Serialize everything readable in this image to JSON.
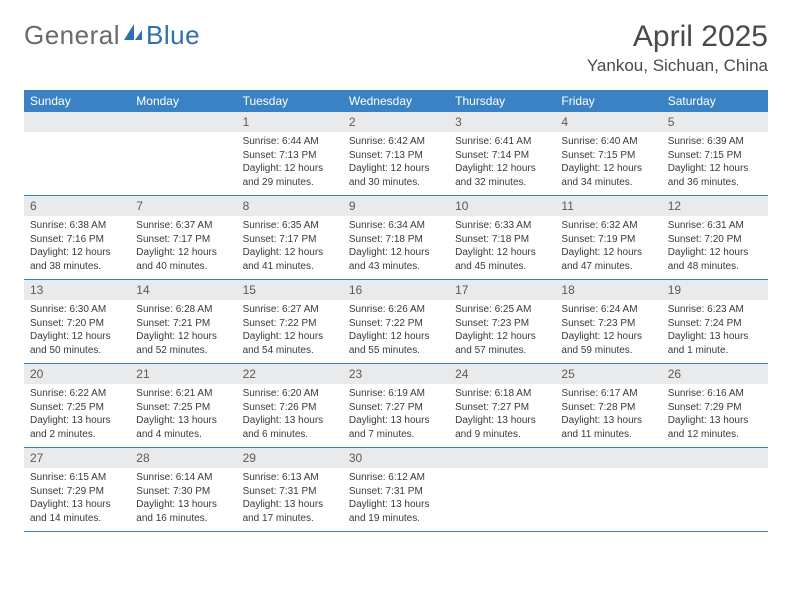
{
  "logo": {
    "text1": "General",
    "text2": "Blue"
  },
  "title": "April 2025",
  "location": "Yankou, Sichuan, China",
  "colors": {
    "header_bg": "#3b82c4",
    "header_fg": "#ffffff",
    "daynum_bg": "#e9eaeb",
    "border": "#3b82c4",
    "text": "#3a3a3a",
    "title": "#4a4a4a",
    "logo_gray": "#6a6a6a",
    "logo_blue": "#2f6fae"
  },
  "day_headers": [
    "Sunday",
    "Monday",
    "Tuesday",
    "Wednesday",
    "Thursday",
    "Friday",
    "Saturday"
  ],
  "weeks": [
    [
      null,
      null,
      {
        "n": "1",
        "sunrise": "6:44 AM",
        "sunset": "7:13 PM",
        "daylight": "12 hours and 29 minutes."
      },
      {
        "n": "2",
        "sunrise": "6:42 AM",
        "sunset": "7:13 PM",
        "daylight": "12 hours and 30 minutes."
      },
      {
        "n": "3",
        "sunrise": "6:41 AM",
        "sunset": "7:14 PM",
        "daylight": "12 hours and 32 minutes."
      },
      {
        "n": "4",
        "sunrise": "6:40 AM",
        "sunset": "7:15 PM",
        "daylight": "12 hours and 34 minutes."
      },
      {
        "n": "5",
        "sunrise": "6:39 AM",
        "sunset": "7:15 PM",
        "daylight": "12 hours and 36 minutes."
      }
    ],
    [
      {
        "n": "6",
        "sunrise": "6:38 AM",
        "sunset": "7:16 PM",
        "daylight": "12 hours and 38 minutes."
      },
      {
        "n": "7",
        "sunrise": "6:37 AM",
        "sunset": "7:17 PM",
        "daylight": "12 hours and 40 minutes."
      },
      {
        "n": "8",
        "sunrise": "6:35 AM",
        "sunset": "7:17 PM",
        "daylight": "12 hours and 41 minutes."
      },
      {
        "n": "9",
        "sunrise": "6:34 AM",
        "sunset": "7:18 PM",
        "daylight": "12 hours and 43 minutes."
      },
      {
        "n": "10",
        "sunrise": "6:33 AM",
        "sunset": "7:18 PM",
        "daylight": "12 hours and 45 minutes."
      },
      {
        "n": "11",
        "sunrise": "6:32 AM",
        "sunset": "7:19 PM",
        "daylight": "12 hours and 47 minutes."
      },
      {
        "n": "12",
        "sunrise": "6:31 AM",
        "sunset": "7:20 PM",
        "daylight": "12 hours and 48 minutes."
      }
    ],
    [
      {
        "n": "13",
        "sunrise": "6:30 AM",
        "sunset": "7:20 PM",
        "daylight": "12 hours and 50 minutes."
      },
      {
        "n": "14",
        "sunrise": "6:28 AM",
        "sunset": "7:21 PM",
        "daylight": "12 hours and 52 minutes."
      },
      {
        "n": "15",
        "sunrise": "6:27 AM",
        "sunset": "7:22 PM",
        "daylight": "12 hours and 54 minutes."
      },
      {
        "n": "16",
        "sunrise": "6:26 AM",
        "sunset": "7:22 PM",
        "daylight": "12 hours and 55 minutes."
      },
      {
        "n": "17",
        "sunrise": "6:25 AM",
        "sunset": "7:23 PM",
        "daylight": "12 hours and 57 minutes."
      },
      {
        "n": "18",
        "sunrise": "6:24 AM",
        "sunset": "7:23 PM",
        "daylight": "12 hours and 59 minutes."
      },
      {
        "n": "19",
        "sunrise": "6:23 AM",
        "sunset": "7:24 PM",
        "daylight": "13 hours and 1 minute."
      }
    ],
    [
      {
        "n": "20",
        "sunrise": "6:22 AM",
        "sunset": "7:25 PM",
        "daylight": "13 hours and 2 minutes."
      },
      {
        "n": "21",
        "sunrise": "6:21 AM",
        "sunset": "7:25 PM",
        "daylight": "13 hours and 4 minutes."
      },
      {
        "n": "22",
        "sunrise": "6:20 AM",
        "sunset": "7:26 PM",
        "daylight": "13 hours and 6 minutes."
      },
      {
        "n": "23",
        "sunrise": "6:19 AM",
        "sunset": "7:27 PM",
        "daylight": "13 hours and 7 minutes."
      },
      {
        "n": "24",
        "sunrise": "6:18 AM",
        "sunset": "7:27 PM",
        "daylight": "13 hours and 9 minutes."
      },
      {
        "n": "25",
        "sunrise": "6:17 AM",
        "sunset": "7:28 PM",
        "daylight": "13 hours and 11 minutes."
      },
      {
        "n": "26",
        "sunrise": "6:16 AM",
        "sunset": "7:29 PM",
        "daylight": "13 hours and 12 minutes."
      }
    ],
    [
      {
        "n": "27",
        "sunrise": "6:15 AM",
        "sunset": "7:29 PM",
        "daylight": "13 hours and 14 minutes."
      },
      {
        "n": "28",
        "sunrise": "6:14 AM",
        "sunset": "7:30 PM",
        "daylight": "13 hours and 16 minutes."
      },
      {
        "n": "29",
        "sunrise": "6:13 AM",
        "sunset": "7:31 PM",
        "daylight": "13 hours and 17 minutes."
      },
      {
        "n": "30",
        "sunrise": "6:12 AM",
        "sunset": "7:31 PM",
        "daylight": "13 hours and 19 minutes."
      },
      null,
      null,
      null
    ]
  ],
  "labels": {
    "sunrise": "Sunrise: ",
    "sunset": "Sunset: ",
    "daylight": "Daylight: "
  }
}
